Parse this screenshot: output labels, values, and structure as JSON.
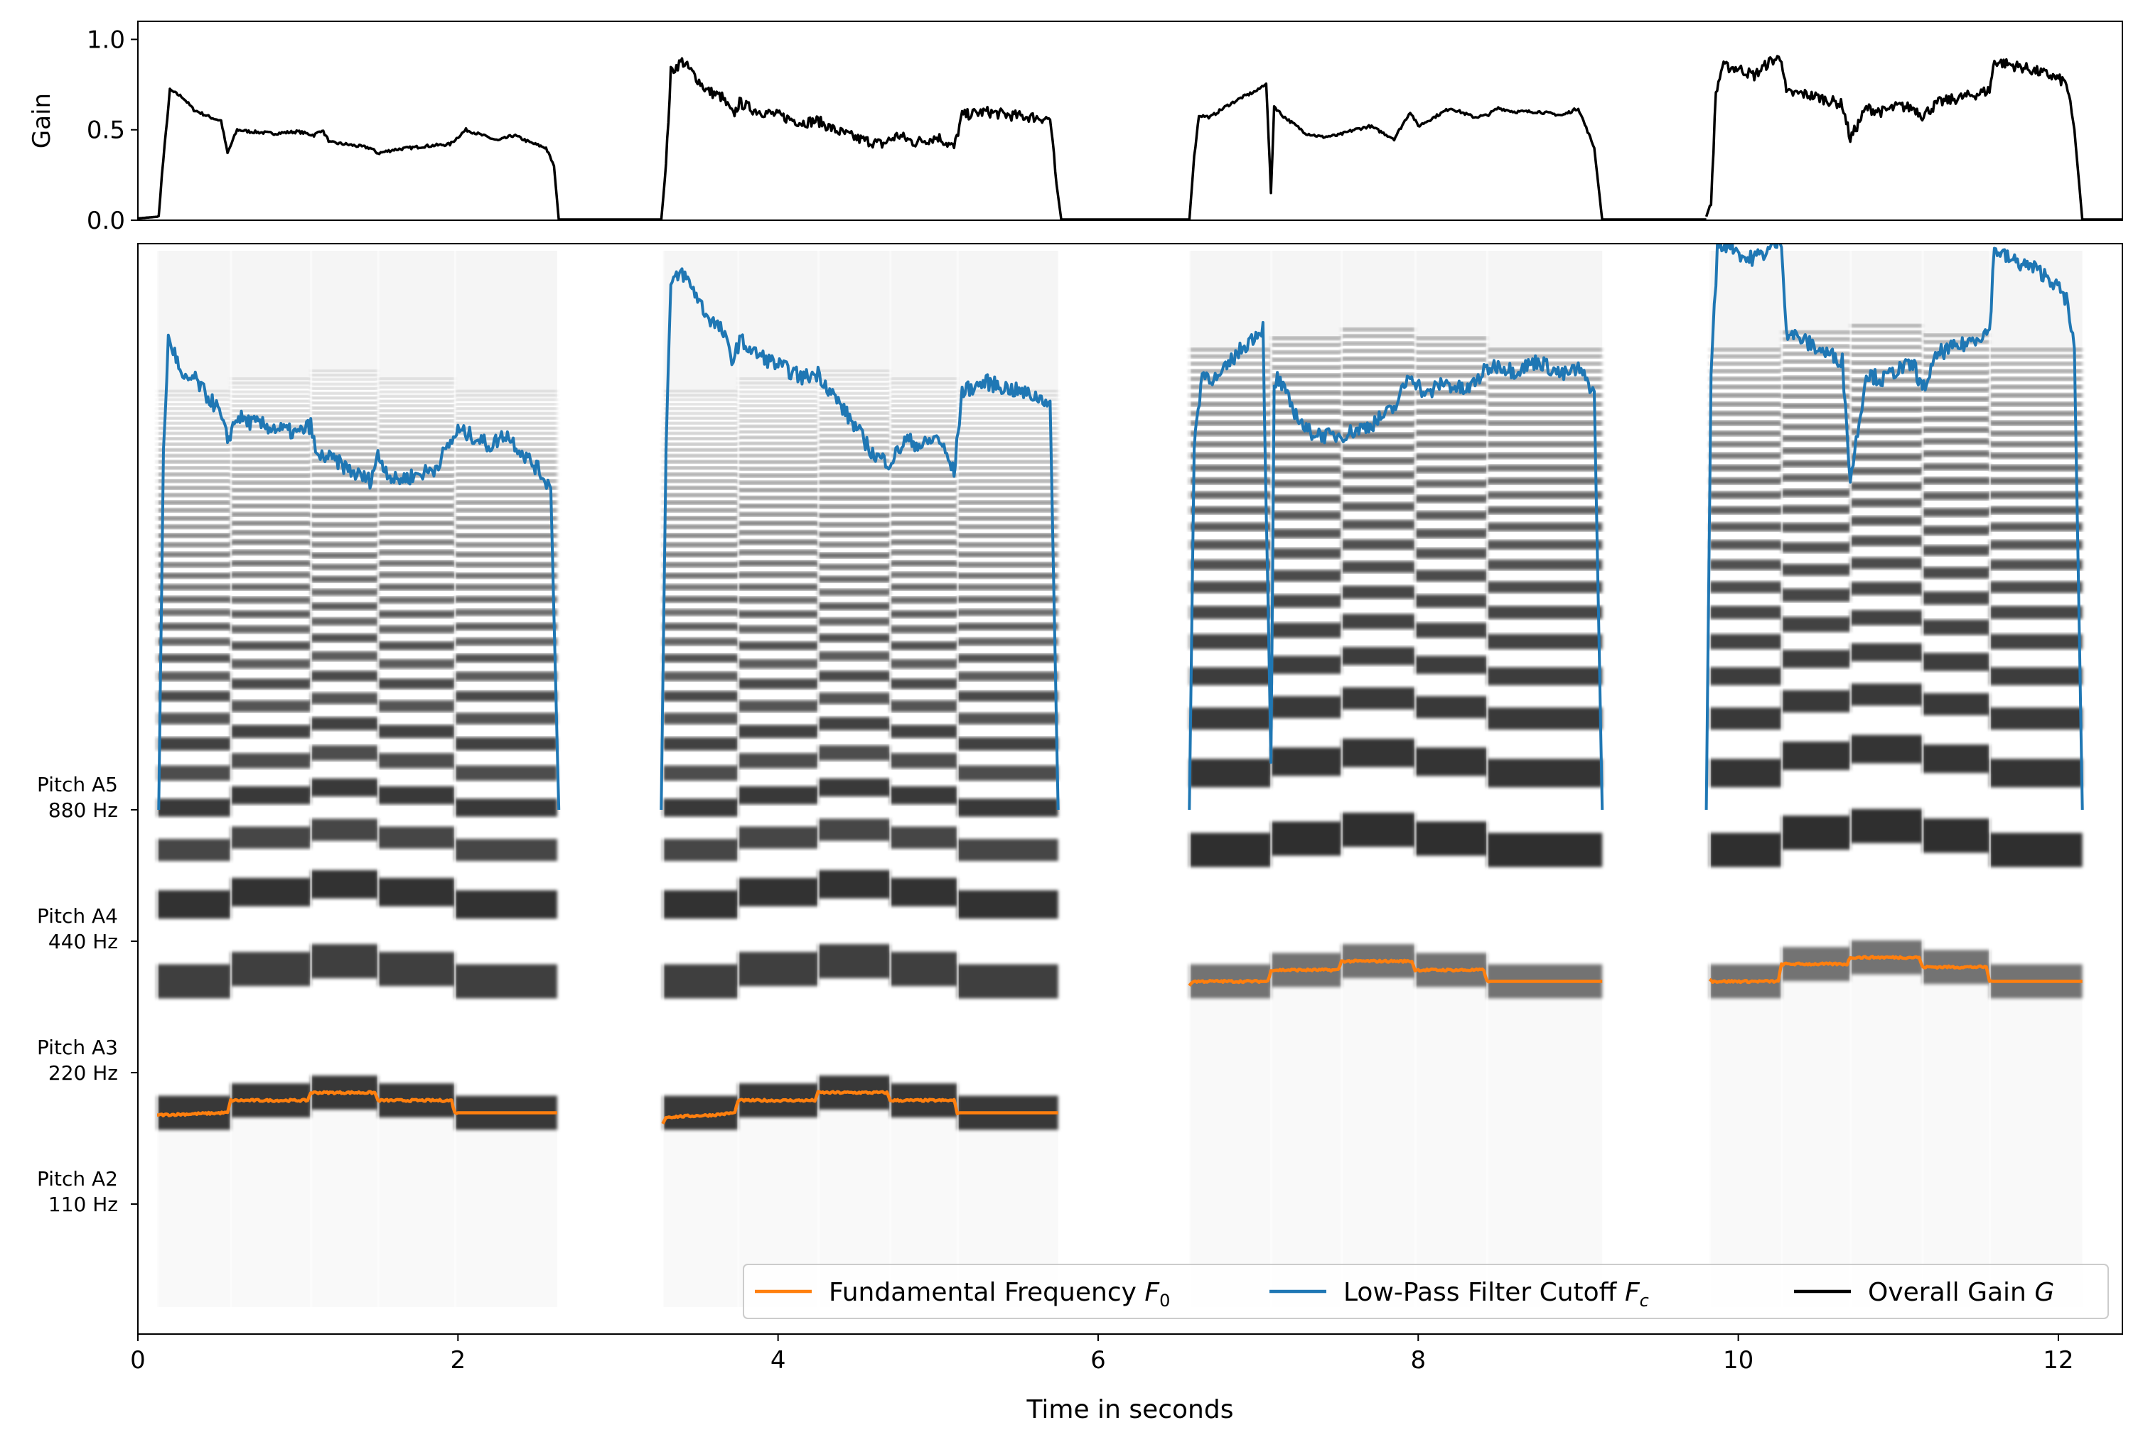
{
  "chart_data": [
    {
      "type": "line",
      "panel": "gain",
      "ylabel": "Gain",
      "xlim": [
        0,
        12.4
      ],
      "ylim": [
        0.0,
        1.1
      ],
      "yticks": [
        0.0,
        0.5,
        1.0
      ],
      "ytick_labels": [
        "0.0",
        "0.5",
        "1.0"
      ],
      "series": [
        {
          "name": "Overall Gain G",
          "color": "#000000",
          "segments": [
            {
              "x": [
                0.0,
                0.13,
                0.15,
                0.2,
                0.28,
                0.35,
                0.45,
                0.52,
                0.56,
                0.62,
                0.7,
                0.85,
                1.0,
                1.1,
                1.15,
                1.2,
                1.3,
                1.45,
                1.5,
                1.6,
                1.7,
                1.8,
                1.95,
                2.05,
                2.15,
                2.25,
                2.35,
                2.45,
                2.55,
                2.6,
                2.63
              ],
              "y": [
                0.01,
                0.02,
                0.25,
                0.72,
                0.68,
                0.61,
                0.57,
                0.55,
                0.37,
                0.5,
                0.49,
                0.48,
                0.49,
                0.47,
                0.5,
                0.43,
                0.42,
                0.4,
                0.37,
                0.39,
                0.4,
                0.41,
                0.42,
                0.5,
                0.47,
                0.44,
                0.47,
                0.43,
                0.4,
                0.3,
                0.0
              ]
            },
            {
              "x": [
                3.27,
                3.3,
                3.33,
                3.4,
                3.48,
                3.55,
                3.65,
                3.72,
                3.76,
                3.85,
                4.0,
                4.15,
                4.25,
                4.35,
                4.5,
                4.65,
                4.75,
                4.85,
                5.0,
                5.1,
                5.15,
                5.3,
                5.45,
                5.6,
                5.7,
                5.74,
                5.77
              ],
              "y": [
                0.0,
                0.3,
                0.82,
                0.88,
                0.8,
                0.72,
                0.68,
                0.58,
                0.65,
                0.61,
                0.58,
                0.54,
                0.55,
                0.5,
                0.45,
                0.42,
                0.47,
                0.43,
                0.46,
                0.4,
                0.58,
                0.6,
                0.58,
                0.57,
                0.56,
                0.2,
                0.0
              ]
            },
            {
              "x": [
                6.57,
                6.6,
                6.63,
                6.7,
                6.8,
                6.9,
                7.0,
                7.05,
                7.08,
                7.1,
                7.15,
                7.3,
                7.4,
                7.5,
                7.6,
                7.7,
                7.85,
                7.95,
                8.0,
                8.1,
                8.2,
                8.35,
                8.43,
                8.5,
                8.6,
                8.75,
                8.9,
                9.0,
                9.1,
                9.15
              ],
              "y": [
                0.0,
                0.35,
                0.58,
                0.57,
                0.63,
                0.68,
                0.72,
                0.76,
                0.15,
                0.63,
                0.58,
                0.48,
                0.46,
                0.47,
                0.5,
                0.52,
                0.45,
                0.6,
                0.52,
                0.57,
                0.62,
                0.57,
                0.58,
                0.62,
                0.6,
                0.6,
                0.58,
                0.62,
                0.4,
                0.0
              ]
            },
            {
              "x": [
                9.8,
                9.83,
                9.86,
                9.9,
                10.0,
                10.1,
                10.2,
                10.27,
                10.3,
                10.4,
                10.5,
                10.65,
                10.7,
                10.8,
                10.9,
                11.0,
                11.1,
                11.15,
                11.25,
                11.4,
                11.5,
                11.57,
                11.6,
                11.7,
                11.8,
                11.95,
                12.05,
                12.1,
                12.15
              ],
              "y": [
                0.02,
                0.1,
                0.7,
                0.85,
                0.84,
                0.8,
                0.88,
                0.9,
                0.7,
                0.7,
                0.68,
                0.64,
                0.45,
                0.62,
                0.6,
                0.63,
                0.62,
                0.58,
                0.65,
                0.68,
                0.7,
                0.72,
                0.88,
                0.86,
                0.84,
                0.8,
                0.76,
                0.5,
                0.0
              ]
            }
          ]
        }
      ]
    },
    {
      "type": "line",
      "panel": "spectrogram",
      "xlabel": "Time in seconds",
      "xlim": [
        0,
        12.4
      ],
      "xticks": [
        0,
        2,
        4,
        6,
        8,
        10,
        12
      ],
      "xtick_labels": [
        "0",
        "2",
        "4",
        "6",
        "8",
        "10",
        "12"
      ],
      "yaxis_scale": "log",
      "ytick_frequencies_hz": [
        110,
        220,
        440,
        880
      ],
      "ytick_labels": [
        {
          "pitch": "Pitch A2",
          "freq": "110 Hz"
        },
        {
          "pitch": "Pitch A3",
          "freq": "220 Hz"
        },
        {
          "pitch": "Pitch A4",
          "freq": "440 Hz"
        },
        {
          "pitch": "Pitch A5",
          "freq": "880 Hz"
        }
      ],
      "background": "grayscale spectrogram",
      "notes": [
        {
          "t0": 0.12,
          "t1": 0.58,
          "f0": 178
        },
        {
          "t0": 0.58,
          "t1": 1.08,
          "f0": 190
        },
        {
          "t0": 1.08,
          "t1": 1.5,
          "f0": 198
        },
        {
          "t0": 1.5,
          "t1": 1.98,
          "f0": 190
        },
        {
          "t0": 1.98,
          "t1": 2.62,
          "f0": 178
        },
        {
          "t0": 3.28,
          "t1": 3.75,
          "f0": 178
        },
        {
          "t0": 3.75,
          "t1": 4.25,
          "f0": 190
        },
        {
          "t0": 4.25,
          "t1": 4.7,
          "f0": 198
        },
        {
          "t0": 4.7,
          "t1": 5.12,
          "f0": 190
        },
        {
          "t0": 5.12,
          "t1": 5.75,
          "f0": 178
        },
        {
          "t0": 6.57,
          "t1": 7.08,
          "f0": 356
        },
        {
          "t0": 7.08,
          "t1": 7.52,
          "f0": 378
        },
        {
          "t0": 7.52,
          "t1": 7.98,
          "f0": 396
        },
        {
          "t0": 7.98,
          "t1": 8.43,
          "f0": 378
        },
        {
          "t0": 8.43,
          "t1": 9.15,
          "f0": 356
        },
        {
          "t0": 9.82,
          "t1": 10.27,
          "f0": 356
        },
        {
          "t0": 10.27,
          "t1": 10.7,
          "f0": 390
        },
        {
          "t0": 10.7,
          "t1": 11.15,
          "f0": 404
        },
        {
          "t0": 11.15,
          "t1": 11.57,
          "f0": 384
        },
        {
          "t0": 11.57,
          "t1": 12.15,
          "f0": 356
        }
      ],
      "series": [
        {
          "name": "Fundamental Frequency F0",
          "color": "#ff7f0e",
          "segments": [
            {
              "x": [
                0.12,
                0.14,
                0.56,
                0.58,
                0.6,
                1.06,
                1.08,
                1.1,
                1.48,
                1.5,
                1.52,
                1.96,
                1.98,
                2.0,
                2.62
              ],
              "y": [
                176,
                176,
                178,
                190,
                190,
                190,
                198,
                198,
                198,
                190,
                190,
                190,
                178,
                178,
                178
              ]
            },
            {
              "x": [
                3.28,
                3.3,
                3.6,
                3.73,
                3.75,
                3.77,
                4.23,
                4.25,
                4.27,
                4.68,
                4.7,
                4.72,
                5.1,
                5.12,
                5.14,
                5.75
              ],
              "y": [
                168,
                174,
                176,
                178,
                190,
                190,
                190,
                198,
                198,
                198,
                190,
                190,
                190,
                178,
                178,
                178
              ]
            },
            {
              "x": [
                6.57,
                6.59,
                7.06,
                7.08,
                7.1,
                7.5,
                7.52,
                7.54,
                7.96,
                7.98,
                8.0,
                8.41,
                8.43,
                8.45,
                9.15
              ],
              "y": [
                348,
                356,
                356,
                378,
                378,
                378,
                396,
                396,
                396,
                378,
                378,
                378,
                356,
                356,
                356
              ]
            },
            {
              "x": [
                9.82,
                9.84,
                10.25,
                10.27,
                10.29,
                10.68,
                10.7,
                10.72,
                11.13,
                11.15,
                11.17,
                11.55,
                11.57,
                11.59,
                12.15
              ],
              "y": [
                360,
                356,
                356,
                390,
                390,
                390,
                404,
                404,
                404,
                384,
                384,
                384,
                356,
                356,
                356
              ]
            }
          ]
        },
        {
          "name": "Low-Pass Filter Cutoff Fc",
          "color": "#1f77b4",
          "segments": [
            {
              "x": [
                0.13,
                0.16,
                0.19,
                0.23,
                0.28,
                0.35,
                0.42,
                0.5,
                0.56,
                0.62,
                0.7,
                0.85,
                1.0,
                1.08,
                1.12,
                1.16,
                1.25,
                1.35,
                1.45,
                1.5,
                1.55,
                1.6,
                1.7,
                1.85,
                2.0,
                2.1,
                2.2,
                2.3,
                2.4,
                2.5,
                2.58,
                2.63
              ],
              "y": [
                880,
                5800,
                10500,
                9800,
                8400,
                8600,
                7900,
                7300,
                6200,
                7000,
                6800,
                6600,
                6400,
                6700,
                5600,
                5700,
                5500,
                5200,
                5000,
                5700,
                5300,
                5000,
                5100,
                5300,
                6500,
                6300,
                6000,
                6400,
                5800,
                5300,
                4800,
                880
              ]
            },
            {
              "x": [
                3.27,
                3.3,
                3.33,
                3.4,
                3.48,
                3.55,
                3.65,
                3.72,
                3.76,
                3.85,
                4.0,
                4.15,
                4.25,
                4.35,
                4.5,
                4.6,
                4.7,
                4.8,
                4.9,
                5.0,
                5.1,
                5.15,
                5.3,
                5.45,
                5.6,
                5.7,
                5.75
              ],
              "y": [
                880,
                6000,
                14000,
                15000,
                13500,
                12000,
                11000,
                9400,
                10500,
                9800,
                9200,
                8600,
                8800,
                7800,
                6500,
                5700,
                5500,
                6200,
                6000,
                6300,
                5200,
                8000,
                8400,
                8100,
                7800,
                7600,
                880
              ]
            },
            {
              "x": [
                6.57,
                6.6,
                6.65,
                6.75,
                6.85,
                6.95,
                7.03,
                7.08,
                7.1,
                7.12,
                7.2,
                7.3,
                7.45,
                7.55,
                7.7,
                7.85,
                7.95,
                8.05,
                8.15,
                8.3,
                8.43,
                8.5,
                8.6,
                8.75,
                8.9,
                9.0,
                9.1,
                9.15
              ],
              "y": [
                880,
                6000,
                8800,
                8500,
                9600,
                10500,
                11200,
                1100,
                8000,
                8600,
                7500,
                6500,
                6300,
                6400,
                6700,
                7300,
                8800,
                7800,
                8400,
                8000,
                9000,
                9200,
                8900,
                9400,
                8700,
                9000,
                8000,
                880
              ]
            },
            {
              "x": [
                9.8,
                9.83,
                9.87,
                9.95,
                10.05,
                10.15,
                10.25,
                10.27,
                10.3,
                10.4,
                10.5,
                10.65,
                10.7,
                10.8,
                10.9,
                11.0,
                11.1,
                11.15,
                11.25,
                11.4,
                11.5,
                11.57,
                11.6,
                11.7,
                11.85,
                11.95,
                12.05,
                12.1,
                12.15
              ],
              "y": [
                880,
                9000,
                17000,
                17500,
                16000,
                16500,
                17500,
                17800,
                11000,
                10500,
                10000,
                9400,
                5000,
                8800,
                8500,
                9000,
                9200,
                8000,
                9800,
                10200,
                10700,
                11000,
                17000,
                16000,
                15300,
                14500,
                13000,
                10000,
                880
              ]
            }
          ]
        },
        {
          "name": "Overall Gain G",
          "color": "#000000",
          "segments": []
        }
      ],
      "legend": {
        "placement": "lower right",
        "entries": [
          {
            "label": "Fundamental Frequency ",
            "symbol": "F",
            "sub": "0",
            "color": "#ff7f0e"
          },
          {
            "label": "Low-Pass Filter Cutoff ",
            "symbol": "F",
            "sub": "c",
            "color": "#1f77b4"
          },
          {
            "label": "Overall Gain ",
            "symbol": "G",
            "sub": "",
            "color": "#000000"
          }
        ]
      }
    }
  ]
}
